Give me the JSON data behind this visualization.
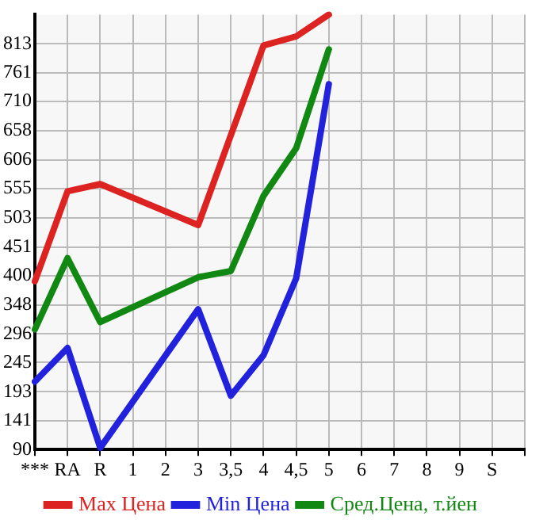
{
  "chart_data": {
    "type": "line",
    "categories": [
      "***",
      "RA",
      "R",
      "1",
      "2",
      "3",
      "3,5",
      "4",
      "4,5",
      "5",
      "6",
      "7",
      "8",
      "9",
      "S"
    ],
    "series": [
      {
        "name": "Max Цена",
        "color": "#dd2222",
        "values": [
          390,
          550,
          563,
          null,
          null,
          490,
          null,
          810,
          826,
          865,
          null,
          null,
          null,
          null,
          null
        ]
      },
      {
        "name": "Min Цена",
        "color": "#2222dd",
        "values": [
          211,
          271,
          93,
          null,
          null,
          340,
          186,
          258,
          395,
          741,
          null,
          null,
          null,
          null,
          null
        ]
      },
      {
        "name": "Сред.Цена, т.йен",
        "color": "#118811",
        "values": [
          304,
          431,
          317,
          null,
          null,
          397,
          408,
          542,
          627,
          803,
          null,
          null,
          null,
          null,
          null
        ]
      }
    ],
    "ylim": [
      90,
      865
    ],
    "yticks": [
      90,
      141,
      193,
      245,
      296,
      348,
      400,
      451,
      503,
      555,
      606,
      658,
      710,
      761,
      813
    ],
    "grid": true,
    "legend": "bottom",
    "marker": "none",
    "line_style": "solid"
  }
}
